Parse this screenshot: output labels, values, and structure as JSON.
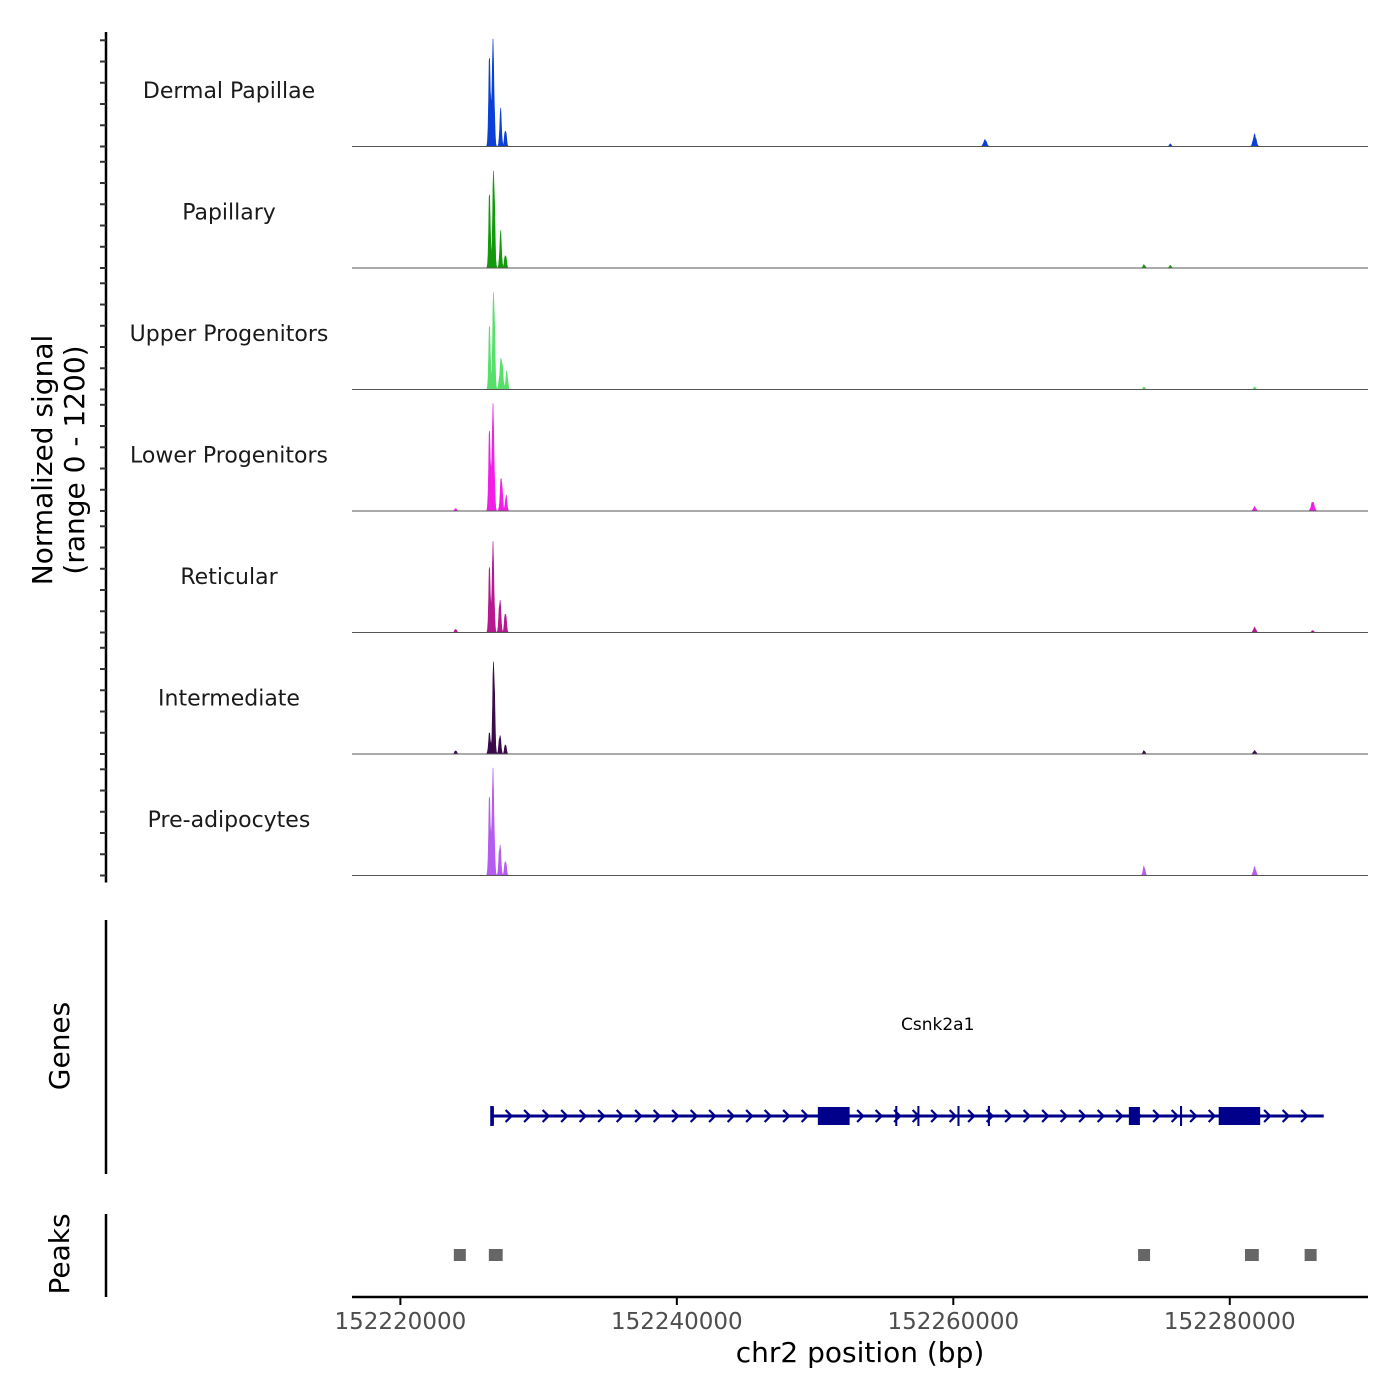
{
  "chart_data": {
    "type": "area",
    "title": "",
    "chromosome": "chr2",
    "xlabel": "chr2 position (bp)",
    "ylabel_line1": "Normalized signal",
    "ylabel_line2": "(range 0 - 1200)",
    "xlim": [
      152216500,
      152290000
    ],
    "ylim": [
      0,
      1200
    ],
    "x_ticks": [
      152220000,
      152240000,
      152260000,
      152280000
    ],
    "x_tick_labels": [
      "152220000",
      "152240000",
      "152260000",
      "152280000"
    ],
    "tracks": [
      {
        "name": "Dermal Papillae",
        "color": "#0b3fd6",
        "peaks": [
          {
            "pos": 152226700,
            "height": 1180,
            "width": 220
          },
          {
            "pos": 152226450,
            "height": 1050,
            "width": 180
          },
          {
            "pos": 152227250,
            "height": 430,
            "width": 180
          },
          {
            "pos": 152227600,
            "height": 200,
            "width": 200
          },
          {
            "pos": 152262300,
            "height": 80,
            "width": 300
          },
          {
            "pos": 152281800,
            "height": 140,
            "width": 300
          },
          {
            "pos": 152275700,
            "height": 30,
            "width": 200
          }
        ]
      },
      {
        "name": "Papillary",
        "color": "#139a0c",
        "peaks": [
          {
            "pos": 152226750,
            "height": 1180,
            "width": 200
          },
          {
            "pos": 152226450,
            "height": 880,
            "width": 170
          },
          {
            "pos": 152227250,
            "height": 420,
            "width": 180
          },
          {
            "pos": 152227600,
            "height": 160,
            "width": 200
          },
          {
            "pos": 152273800,
            "height": 40,
            "width": 200
          },
          {
            "pos": 152275700,
            "height": 30,
            "width": 200
          }
        ]
      },
      {
        "name": "Upper Progenitors",
        "color": "#56e06a",
        "peaks": [
          {
            "pos": 152226750,
            "height": 1180,
            "width": 200
          },
          {
            "pos": 152226450,
            "height": 760,
            "width": 170
          },
          {
            "pos": 152227300,
            "height": 370,
            "width": 300
          },
          {
            "pos": 152227700,
            "height": 220,
            "width": 180
          },
          {
            "pos": 152273800,
            "height": 30,
            "width": 200
          },
          {
            "pos": 152281800,
            "height": 30,
            "width": 200
          }
        ]
      },
      {
        "name": "Lower Progenitors",
        "color": "#f21ee8",
        "peaks": [
          {
            "pos": 152226700,
            "height": 1180,
            "width": 220
          },
          {
            "pos": 152226450,
            "height": 950,
            "width": 180
          },
          {
            "pos": 152227300,
            "height": 400,
            "width": 220
          },
          {
            "pos": 152227650,
            "height": 180,
            "width": 180
          },
          {
            "pos": 152286000,
            "height": 110,
            "width": 300
          },
          {
            "pos": 152281800,
            "height": 50,
            "width": 250
          },
          {
            "pos": 152224000,
            "height": 30,
            "width": 200
          }
        ]
      },
      {
        "name": "Reticular",
        "color": "#b5188f",
        "peaks": [
          {
            "pos": 152226700,
            "height": 1000,
            "width": 200
          },
          {
            "pos": 152226450,
            "height": 780,
            "width": 170
          },
          {
            "pos": 152227200,
            "height": 400,
            "width": 200
          },
          {
            "pos": 152227600,
            "height": 240,
            "width": 200
          },
          {
            "pos": 152281800,
            "height": 60,
            "width": 250
          },
          {
            "pos": 152224000,
            "height": 40,
            "width": 200
          },
          {
            "pos": 152286000,
            "height": 25,
            "width": 200
          }
        ]
      },
      {
        "name": "Intermediate",
        "color": "#3a0a4a",
        "peaks": [
          {
            "pos": 152226750,
            "height": 1120,
            "width": 200
          },
          {
            "pos": 152226450,
            "height": 250,
            "width": 200
          },
          {
            "pos": 152227200,
            "height": 230,
            "width": 200
          },
          {
            "pos": 152227600,
            "height": 120,
            "width": 180
          },
          {
            "pos": 152273800,
            "height": 40,
            "width": 200
          },
          {
            "pos": 152281800,
            "height": 40,
            "width": 250
          },
          {
            "pos": 152224000,
            "height": 40,
            "width": 200
          }
        ]
      },
      {
        "name": "Pre-adipocytes",
        "color": "#b55cf0",
        "peaks": [
          {
            "pos": 152226700,
            "height": 1180,
            "width": 220
          },
          {
            "pos": 152226450,
            "height": 930,
            "width": 180
          },
          {
            "pos": 152227200,
            "height": 380,
            "width": 200
          },
          {
            "pos": 152227600,
            "height": 180,
            "width": 200
          },
          {
            "pos": 152273800,
            "height": 110,
            "width": 200
          },
          {
            "pos": 152281800,
            "height": 100,
            "width": 250
          }
        ]
      }
    ],
    "genes": {
      "title": "Genes",
      "color": "#00008b",
      "items": [
        {
          "name": "Csnk2a1",
          "start": 152226600,
          "end": 152286800,
          "strand": "+",
          "exons": [
            [
              152226500,
              152226750
            ],
            [
              152250200,
              152252500
            ],
            [
              152255800,
              152255950
            ],
            [
              152257400,
              152257550
            ],
            [
              152260300,
              152260450
            ],
            [
              152262500,
              152262650
            ],
            [
              152272700,
              152273500
            ],
            [
              152276400,
              152276550
            ],
            [
              152279200,
              152282200
            ]
          ]
        }
      ]
    },
    "peaks_track": {
      "title": "Peaks",
      "color": "#666666",
      "regions": [
        [
          152223900,
          152224700
        ],
        [
          152226400,
          152227400
        ],
        [
          152273400,
          152274200
        ],
        [
          152281100,
          152282100
        ],
        [
          152285500,
          152286200
        ]
      ]
    }
  }
}
